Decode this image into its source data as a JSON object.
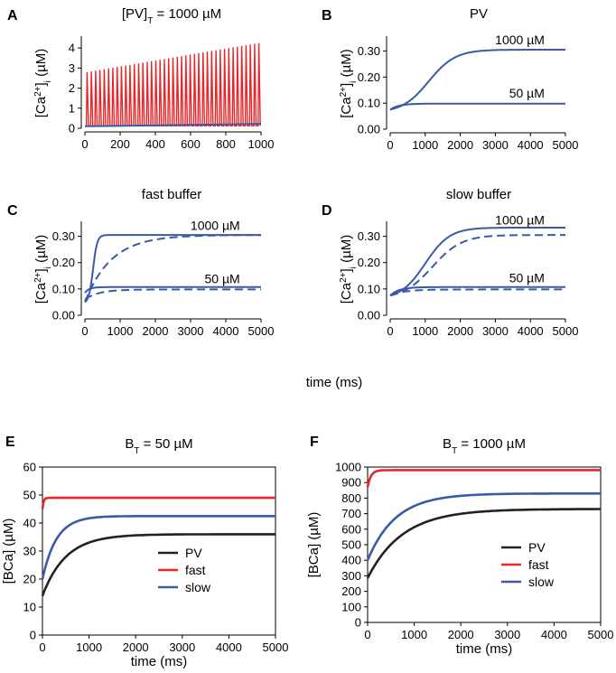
{
  "colors": {
    "blue": "#3a5aa8",
    "red": "#e8262a",
    "black": "#222222"
  },
  "shared_xlabel_top": "time (ms)",
  "chart_data": [
    {
      "id": "A",
      "type": "line",
      "panel_label": "A",
      "title_parts": {
        "main": "[PV]",
        "sub": "T",
        "rest": " = 1000 µM"
      },
      "ylabel_parts": {
        "a": "[Ca",
        "sup": "2+",
        "b": "]",
        "sub": "i",
        "c": " (µM)"
      },
      "xlim": [
        0,
        1000
      ],
      "ylim": [
        0,
        4.5
      ],
      "xticks": [
        0,
        200,
        400,
        600,
        800,
        1000
      ],
      "xtick_labels": [
        "0",
        "200",
        "400",
        "600",
        "800",
        "1000"
      ],
      "yticks": [
        0,
        1,
        2,
        3,
        4
      ],
      "ytick_labels": [
        "0",
        "1",
        "2",
        "3",
        "4"
      ],
      "series": [
        {
          "name": "spikes",
          "color": "red",
          "kind": "spikes",
          "n": 41,
          "t_start": 0,
          "t_end": 1000,
          "peak_start": 2.8,
          "peak_end": 4.25,
          "base": 0.12
        },
        {
          "name": "baseline",
          "color": "blue",
          "kind": "line",
          "x": [
            0,
            1000
          ],
          "y": [
            0.1,
            0.22
          ]
        }
      ]
    },
    {
      "id": "B",
      "type": "line",
      "panel_label": "B",
      "title": "PV",
      "ylabel_parts": {
        "a": "[Ca",
        "sup": "2+",
        "b": "]",
        "sub": "i",
        "c": " (µM)"
      },
      "xlim": [
        0,
        5000
      ],
      "ylim": [
        0,
        0.35
      ],
      "xticks": [
        0,
        1000,
        2000,
        3000,
        4000,
        5000
      ],
      "xtick_labels": [
        "0",
        "1000",
        "2000",
        "3000",
        "4000",
        "5000"
      ],
      "yticks": [
        0,
        0.1,
        0.2,
        0.3
      ],
      "ytick_labels": [
        "0.00",
        "0.10",
        "0.20",
        "0.30"
      ],
      "annotations": [
        {
          "text": "1000 µM",
          "x": 3700,
          "y": 0.325
        },
        {
          "text": "50 µM",
          "x": 3900,
          "y": 0.122
        }
      ],
      "series": [
        {
          "name": "1000 µM",
          "color": "blue",
          "dash": false,
          "kind": "sigmoid",
          "y0": 0.075,
          "yinf": 0.305,
          "mid": 1100,
          "w": 380
        },
        {
          "name": "50 µM",
          "color": "blue",
          "dash": false,
          "kind": "exp",
          "y0": 0.075,
          "yinf": 0.098,
          "tau": 250
        }
      ]
    },
    {
      "id": "C",
      "type": "line",
      "panel_label": "C",
      "title": "fast buffer",
      "ylabel_parts": {
        "a": "[Ca",
        "sup": "2+",
        "b": "]",
        "sub": "i",
        "c": " (µM)"
      },
      "xlim": [
        0,
        5000
      ],
      "ylim": [
        0,
        0.35
      ],
      "xticks": [
        0,
        1000,
        2000,
        3000,
        4000,
        5000
      ],
      "xtick_labels": [
        "0",
        "1000",
        "2000",
        "3000",
        "4000",
        "5000"
      ],
      "yticks": [
        0,
        0.1,
        0.2,
        0.3
      ],
      "ytick_labels": [
        "0.00",
        "0.10",
        "0.20",
        "0.30"
      ],
      "annotations": [
        {
          "text": "1000 µM",
          "x": 3700,
          "y": 0.325
        },
        {
          "text": "50 µM",
          "x": 3900,
          "y": 0.122
        }
      ],
      "series": [
        {
          "name": "1000 µM solid",
          "color": "blue",
          "dash": false,
          "kind": "sigmoid",
          "y0": 0.05,
          "yinf": 0.305,
          "mid": 230,
          "w": 60
        },
        {
          "name": "1000 µM dashed",
          "color": "blue",
          "dash": true,
          "kind": "exp",
          "y0": 0.05,
          "yinf": 0.305,
          "tau": 750
        },
        {
          "name": "50 µM solid",
          "color": "blue",
          "dash": false,
          "kind": "exp",
          "y0": 0.085,
          "yinf": 0.107,
          "tau": 120
        },
        {
          "name": "50 µM dashed",
          "color": "blue",
          "dash": true,
          "kind": "exp",
          "y0": 0.06,
          "yinf": 0.098,
          "tau": 400
        }
      ]
    },
    {
      "id": "D",
      "type": "line",
      "panel_label": "D",
      "title": "slow buffer",
      "ylabel_parts": {
        "a": "[Ca",
        "sup": "2+",
        "b": "]",
        "sub": "i",
        "c": " (µM)"
      },
      "xlim": [
        0,
        5000
      ],
      "ylim": [
        0,
        0.35
      ],
      "xticks": [
        0,
        1000,
        2000,
        3000,
        4000,
        5000
      ],
      "xtick_labels": [
        "0",
        "1000",
        "2000",
        "3000",
        "4000",
        "5000"
      ],
      "yticks": [
        0,
        0.1,
        0.2,
        0.3
      ],
      "ytick_labels": [
        "0.00",
        "0.10",
        "0.20",
        "0.30"
      ],
      "annotations": [
        {
          "text": "1000 µM",
          "x": 3700,
          "y": 0.345
        },
        {
          "text": "50 µM",
          "x": 3900,
          "y": 0.125
        }
      ],
      "series": [
        {
          "name": "1000 µM solid",
          "color": "blue",
          "dash": false,
          "kind": "sigmoid",
          "y0": 0.075,
          "yinf": 0.333,
          "mid": 1000,
          "w": 350
        },
        {
          "name": "1000 µM dashed",
          "color": "blue",
          "dash": true,
          "kind": "sigmoid",
          "y0": 0.075,
          "yinf": 0.305,
          "mid": 1200,
          "w": 420
        },
        {
          "name": "50 µM solid",
          "color": "blue",
          "dash": false,
          "kind": "exp",
          "y0": 0.075,
          "yinf": 0.107,
          "tau": 250
        },
        {
          "name": "50 µM dashed",
          "color": "blue",
          "dash": true,
          "kind": "exp",
          "y0": 0.075,
          "yinf": 0.098,
          "tau": 400
        }
      ]
    },
    {
      "id": "E",
      "type": "line",
      "panel_label": "E",
      "boxed": true,
      "title_parts": {
        "main": "B",
        "sub": "T",
        "rest": " = 50 µM"
      },
      "ylabel": "[BCa] (µM)",
      "xlabel": "time (ms)",
      "xlim": [
        0,
        5000
      ],
      "ylim": [
        0,
        60
      ],
      "xticks": [
        0,
        1000,
        2000,
        3000,
        4000,
        5000
      ],
      "xtick_labels": [
        "0",
        "1000",
        "2000",
        "3000",
        "4000",
        "5000"
      ],
      "yticks": [
        0,
        10,
        20,
        30,
        40,
        50,
        60
      ],
      "ytick_labels": [
        "0",
        "10",
        "20",
        "30",
        "40",
        "50",
        "60"
      ],
      "legend": [
        {
          "label": "PV",
          "color": "black"
        },
        {
          "label": "fast",
          "color": "red"
        },
        {
          "label": "slow",
          "color": "blue"
        }
      ],
      "series": [
        {
          "name": "PV",
          "color": "black",
          "dash": false,
          "kind": "exp",
          "y0": 14,
          "yinf": 36,
          "tau": 500
        },
        {
          "name": "fast",
          "color": "red",
          "dash": false,
          "kind": "exp",
          "y0": 45,
          "yinf": 49,
          "tau": 25
        },
        {
          "name": "slow",
          "color": "blue",
          "dash": false,
          "kind": "exp",
          "y0": 20,
          "yinf": 42.5,
          "tau": 300
        }
      ]
    },
    {
      "id": "F",
      "type": "line",
      "panel_label": "F",
      "boxed": true,
      "title_parts": {
        "main": "B",
        "sub": "T",
        "rest": " = 1000 µM"
      },
      "ylabel": "[BCa] (µM)",
      "xlabel": "time (ms)",
      "xlim": [
        0,
        5000
      ],
      "ylim": [
        0,
        1000
      ],
      "xticks": [
        0,
        1000,
        2000,
        3000,
        4000,
        5000
      ],
      "xtick_labels": [
        "0",
        "1000",
        "2000",
        "3000",
        "4000",
        "5000"
      ],
      "yticks": [
        0,
        100,
        200,
        300,
        400,
        500,
        600,
        700,
        800,
        900,
        1000
      ],
      "ytick_labels": [
        "0",
        "100",
        "200",
        "300",
        "400",
        "500",
        "600",
        "700",
        "800",
        "900",
        "1000"
      ],
      "legend": [
        {
          "label": "PV",
          "color": "black"
        },
        {
          "label": "fast",
          "color": "red"
        },
        {
          "label": "slow",
          "color": "blue"
        }
      ],
      "series": [
        {
          "name": "PV",
          "color": "black",
          "dash": false,
          "kind": "exp",
          "y0": 285,
          "yinf": 730,
          "tau": 750
        },
        {
          "name": "fast",
          "color": "red",
          "dash": false,
          "kind": "exp",
          "y0": 870,
          "yinf": 980,
          "tau": 70
        },
        {
          "name": "slow",
          "color": "blue",
          "dash": false,
          "kind": "exp",
          "y0": 400,
          "yinf": 830,
          "tau": 600
        }
      ]
    }
  ]
}
